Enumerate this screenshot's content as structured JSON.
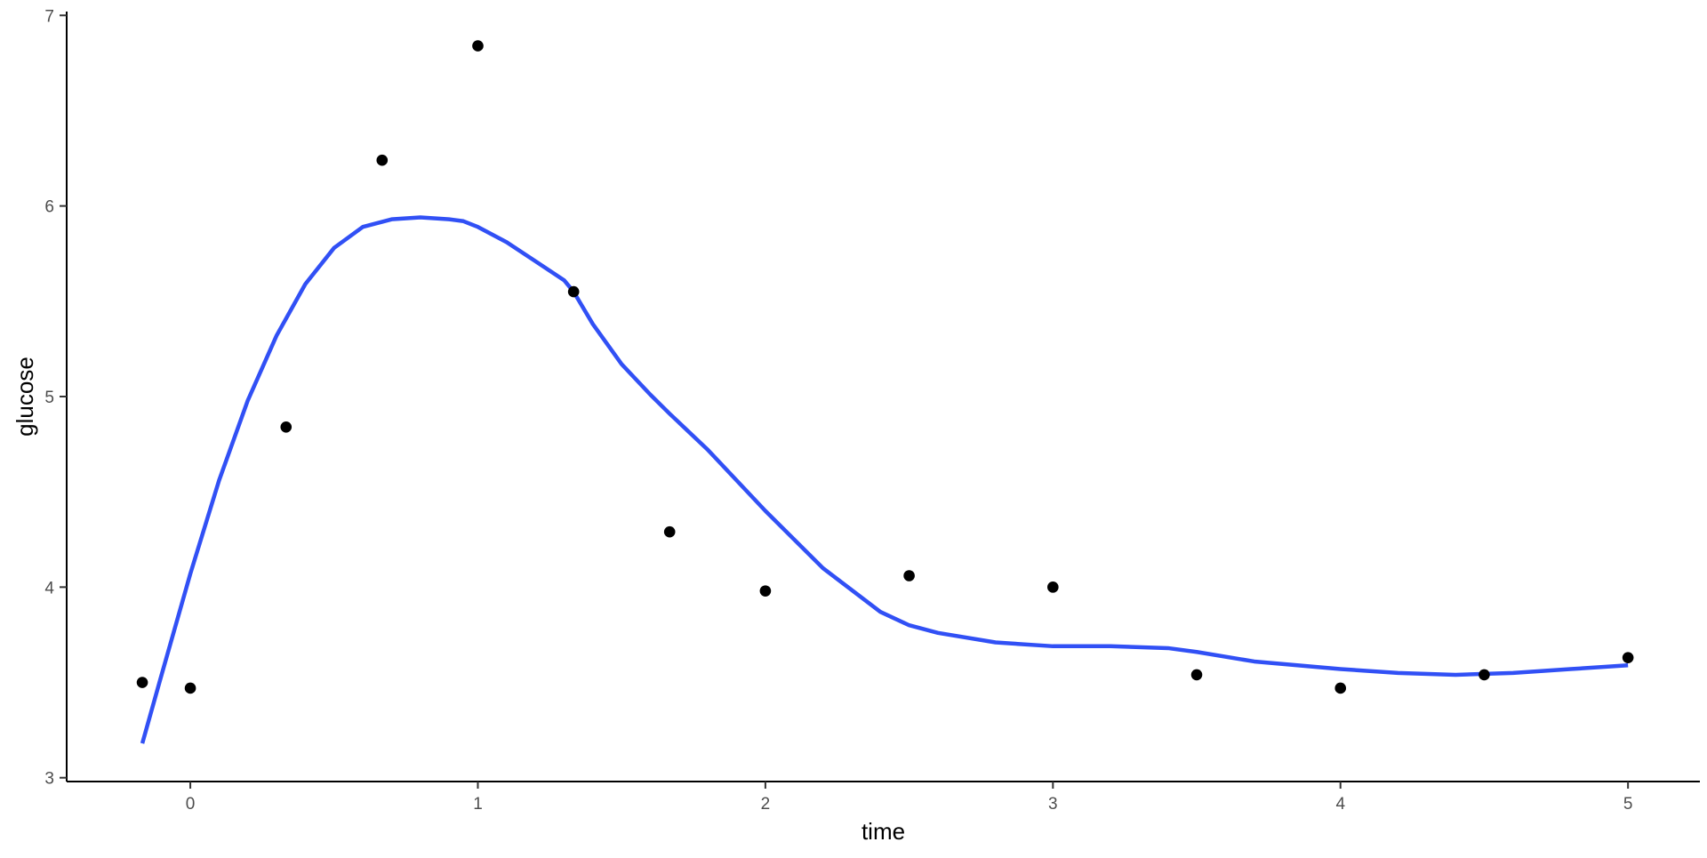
{
  "chart_data": {
    "type": "scatter",
    "xlabel": "time",
    "ylabel": "glucose",
    "xlim": [
      -0.43,
      5.25
    ],
    "ylim": [
      2.98,
      7.02
    ],
    "x_ticks": [
      0,
      1,
      2,
      3,
      4,
      5
    ],
    "y_ticks": [
      3,
      4,
      5,
      6,
      7
    ],
    "grid": false,
    "legend": "none",
    "points": {
      "x": [
        -0.167,
        0,
        0.333,
        0.667,
        1,
        1.333,
        1.667,
        2,
        2.5,
        3,
        3.5,
        4,
        4.5,
        5
      ],
      "y": [
        3.5,
        3.47,
        4.84,
        6.24,
        6.84,
        5.55,
        4.29,
        3.98,
        4.06,
        4.0,
        3.54,
        3.47,
        3.54,
        3.63
      ]
    },
    "smooth": {
      "x": [
        -0.167,
        -0.1,
        0,
        0.1,
        0.2,
        0.3,
        0.4,
        0.5,
        0.6,
        0.7,
        0.8,
        0.9,
        0.95,
        1.0,
        1.1,
        1.2,
        1.3,
        1.333,
        1.4,
        1.5,
        1.6,
        1.667,
        1.8,
        2.0,
        2.2,
        2.4,
        2.5,
        2.6,
        2.8,
        3.0,
        3.2,
        3.4,
        3.5,
        3.7,
        4.0,
        4.2,
        4.4,
        4.6,
        4.8,
        5.0
      ],
      "y": [
        3.18,
        3.54,
        4.07,
        4.56,
        4.98,
        5.32,
        5.59,
        5.78,
        5.89,
        5.93,
        5.94,
        5.93,
        5.92,
        5.89,
        5.81,
        5.71,
        5.61,
        5.55,
        5.38,
        5.17,
        5.01,
        4.91,
        4.72,
        4.4,
        4.1,
        3.87,
        3.8,
        3.76,
        3.71,
        3.69,
        3.69,
        3.68,
        3.66,
        3.61,
        3.57,
        3.55,
        3.54,
        3.55,
        3.57,
        3.59
      ],
      "color": "#3150F5"
    },
    "point_color": "#000000"
  }
}
